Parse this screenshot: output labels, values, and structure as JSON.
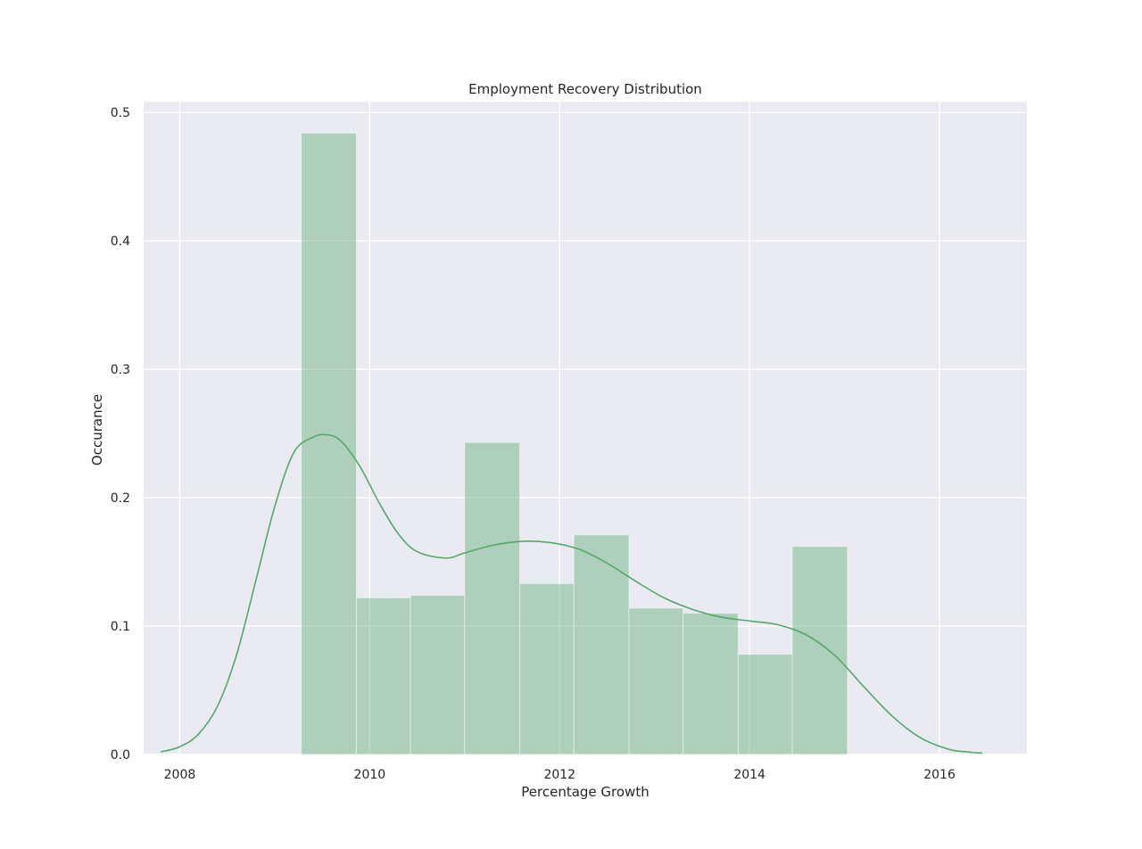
{
  "chart_data": {
    "type": "histogram",
    "title": "Employment Recovery Distribution",
    "xlabel": "Percentage Growth",
    "ylabel": "Occurance",
    "xlim": [
      2007.62,
      2016.92
    ],
    "ylim": [
      0,
      0.5085
    ],
    "x_ticks": [
      2008,
      2010,
      2012,
      2014,
      2016
    ],
    "y_ticks": [
      0.0,
      0.1,
      0.2,
      0.3,
      0.4,
      0.5
    ],
    "y_tick_labels": [
      "0.0",
      "0.1",
      "0.2",
      "0.3",
      "0.4",
      "0.5"
    ],
    "grid": true,
    "bins": [
      {
        "x0": 2009.28,
        "x1": 2009.86,
        "value": 0.484
      },
      {
        "x0": 2009.86,
        "x1": 2010.43,
        "value": 0.122
      },
      {
        "x0": 2010.43,
        "x1": 2011.0,
        "value": 0.124
      },
      {
        "x0": 2011.0,
        "x1": 2011.58,
        "value": 0.243
      },
      {
        "x0": 2011.58,
        "x1": 2012.15,
        "value": 0.133
      },
      {
        "x0": 2012.15,
        "x1": 2012.73,
        "value": 0.171
      },
      {
        "x0": 2012.73,
        "x1": 2013.3,
        "value": 0.114
      },
      {
        "x0": 2013.3,
        "x1": 2013.88,
        "value": 0.11
      },
      {
        "x0": 2013.88,
        "x1": 2014.45,
        "value": 0.078
      },
      {
        "x0": 2014.45,
        "x1": 2015.03,
        "value": 0.162
      }
    ],
    "kde": {
      "x": [
        2007.8,
        2008.0,
        2008.2,
        2008.4,
        2008.6,
        2008.8,
        2009.0,
        2009.2,
        2009.4,
        2009.55,
        2009.7,
        2009.9,
        2010.1,
        2010.3,
        2010.5,
        2010.8,
        2011.0,
        2011.3,
        2011.6,
        2011.9,
        2012.2,
        2012.5,
        2012.8,
        2013.1,
        2013.4,
        2013.7,
        2014.0,
        2014.3,
        2014.6,
        2014.9,
        2015.2,
        2015.5,
        2015.8,
        2016.1,
        2016.3,
        2016.45
      ],
      "y": [
        0.002,
        0.006,
        0.016,
        0.038,
        0.078,
        0.135,
        0.193,
        0.235,
        0.247,
        0.249,
        0.244,
        0.224,
        0.196,
        0.172,
        0.158,
        0.153,
        0.157,
        0.163,
        0.166,
        0.165,
        0.16,
        0.149,
        0.135,
        0.122,
        0.113,
        0.107,
        0.104,
        0.101,
        0.093,
        0.077,
        0.053,
        0.03,
        0.013,
        0.004,
        0.002,
        0.001
      ]
    },
    "bar_color": "#55a868",
    "bar_opacity": 0.4,
    "line_color": "#55a868",
    "plot_background": "#eaeaf2",
    "grid_color": "#ffffff"
  }
}
